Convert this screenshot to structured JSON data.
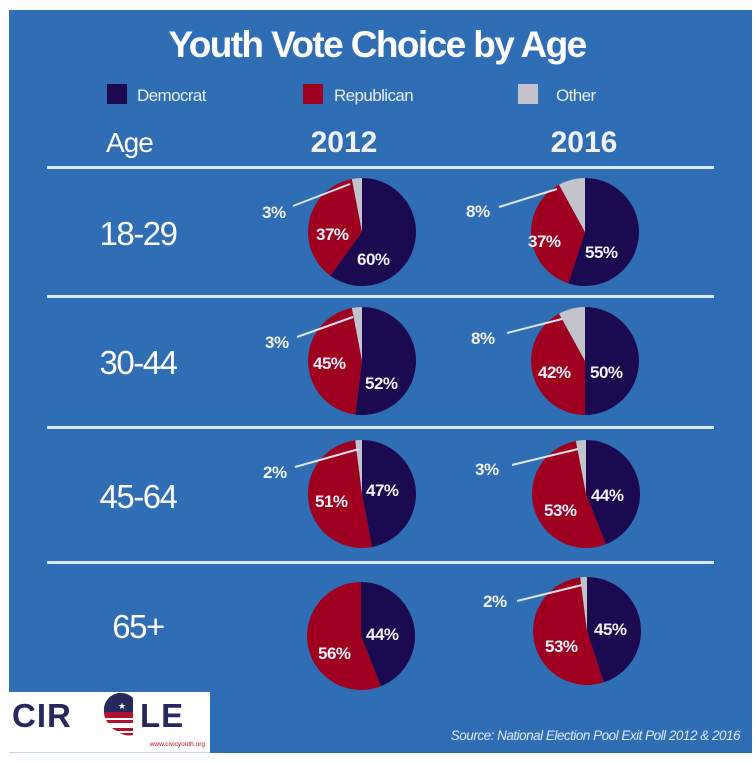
{
  "colors": {
    "background": "#2f6db5",
    "democrat": "#1b0a50",
    "republican": "#a0001f",
    "other": "#c3c3cb",
    "separator": "#dde6f4",
    "logo_navy": "#26285e",
    "logo_red": "#b3122e"
  },
  "logo": {
    "text_left": "CIR",
    "text_right": "LE",
    "url": "www.civicyouth.org"
  },
  "source": "Source: National Election Pool Exit Poll 2012 & 2016",
  "chart_data": {
    "type": "pie",
    "title": "Youth Vote Choice by Age",
    "row_header": "Age",
    "columns": [
      "2012",
      "2016"
    ],
    "legend": [
      {
        "name": "Democrat",
        "color": "#1b0a50"
      },
      {
        "name": "Republican",
        "color": "#a0001f"
      },
      {
        "name": "Other",
        "color": "#c3c3cb"
      }
    ],
    "legend_position": "top",
    "rows": [
      {
        "age": "18-29",
        "pies": [
          {
            "year": "2012",
            "democrat": 60,
            "republican": 37,
            "other": 3,
            "labels": {
              "democrat": "60%",
              "republican": "37%",
              "other": "3%"
            }
          },
          {
            "year": "2016",
            "democrat": 55,
            "republican": 37,
            "other": 8,
            "labels": {
              "democrat": "55%",
              "republican": "37%",
              "other": "8%"
            }
          }
        ]
      },
      {
        "age": "30-44",
        "pies": [
          {
            "year": "2012",
            "democrat": 52,
            "republican": 45,
            "other": 3,
            "labels": {
              "democrat": "52%",
              "republican": "45%",
              "other": "3%"
            }
          },
          {
            "year": "2016",
            "democrat": 50,
            "republican": 42,
            "other": 8,
            "labels": {
              "democrat": "50%",
              "republican": "42%",
              "other": "8%"
            }
          }
        ]
      },
      {
        "age": "45-64",
        "pies": [
          {
            "year": "2012",
            "democrat": 47,
            "republican": 51,
            "other": 2,
            "labels": {
              "democrat": "47%",
              "republican": "51%",
              "other": "2%"
            }
          },
          {
            "year": "2016",
            "democrat": 44,
            "republican": 53,
            "other": 3,
            "labels": {
              "democrat": "44%",
              "republican": "53%",
              "other": "3%"
            }
          }
        ]
      },
      {
        "age": "65+",
        "pies": [
          {
            "year": "2012",
            "democrat": 44,
            "republican": 56,
            "other": 0,
            "labels": {
              "democrat": "44%",
              "republican": "56%"
            }
          },
          {
            "year": "2016",
            "democrat": 45,
            "republican": 53,
            "other": 2,
            "labels": {
              "democrat": "45%",
              "republican": "53%",
              "other": "2%"
            }
          }
        ]
      }
    ]
  }
}
